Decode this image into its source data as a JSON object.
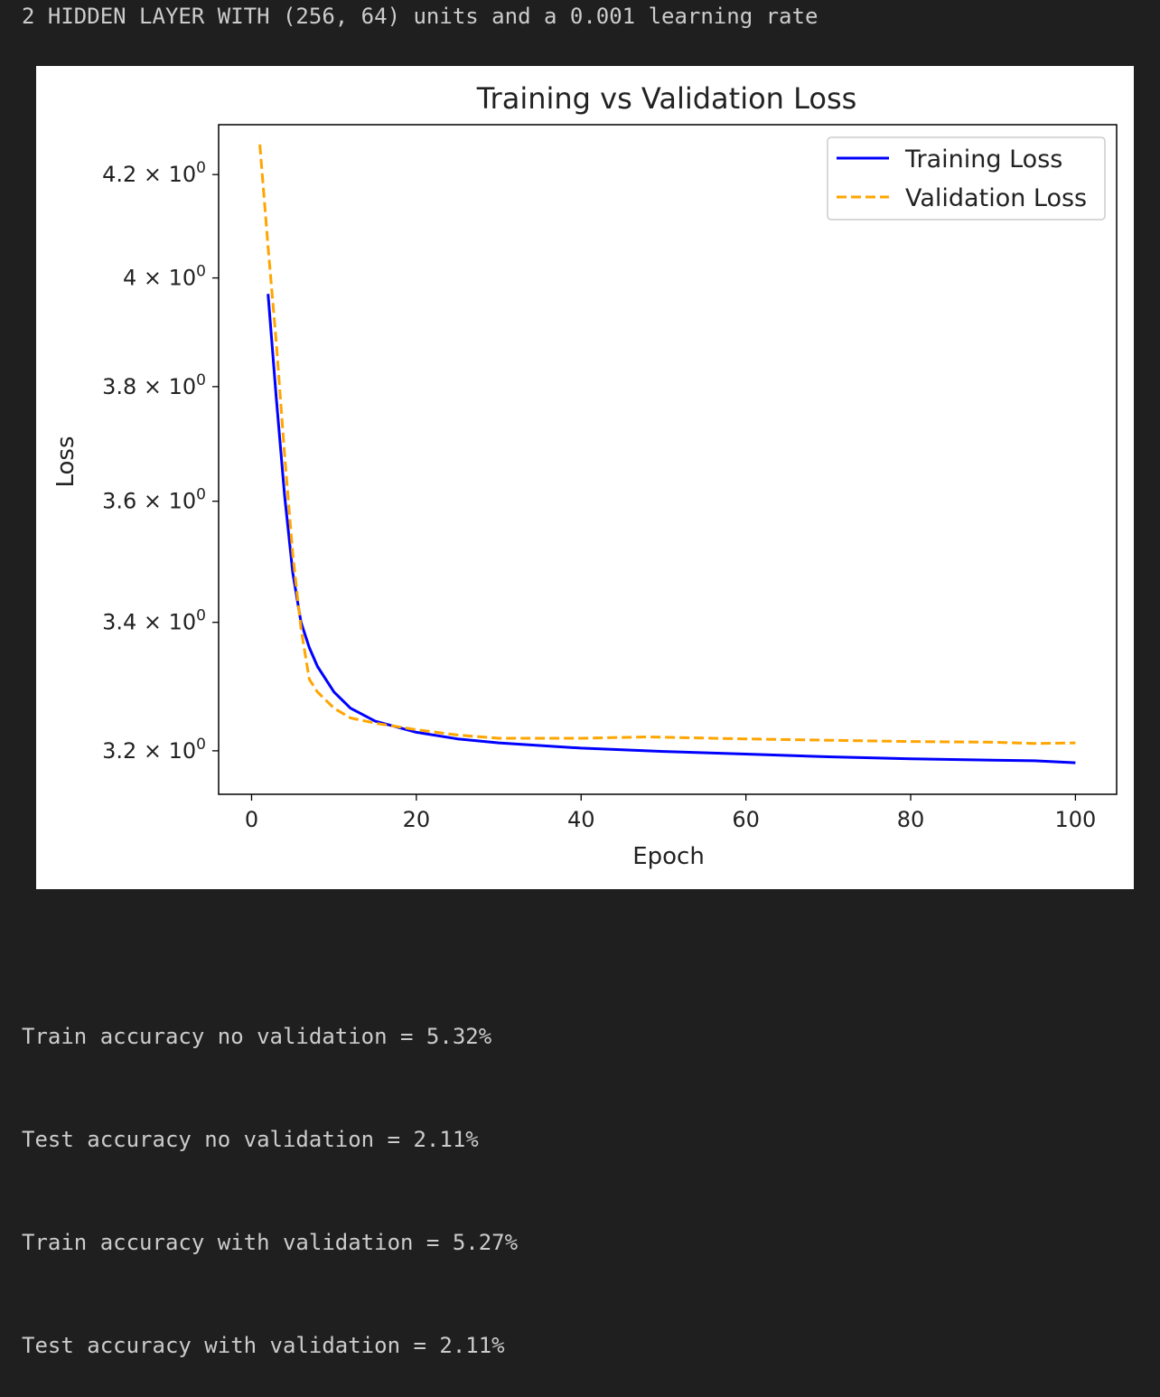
{
  "output": {
    "header": "2 HIDDEN LAYER WITH (256, 64) units and a 0.001 learning rate",
    "results": [
      "Train accuracy no validation = 5.32%",
      "Test accuracy no validation = 2.11%",
      "Train accuracy with validation = 5.27%",
      "Test accuracy with validation = 2.11%"
    ]
  },
  "chart_data": {
    "type": "line",
    "title": "Training vs Validation Loss",
    "xlabel": "Epoch",
    "ylabel": "Loss",
    "yscale": "log",
    "xlim": [
      -4,
      105
    ],
    "ylim": [
      3.135,
      4.3
    ],
    "xticks": [
      0,
      20,
      40,
      60,
      80,
      100
    ],
    "xtick_labels": [
      "0",
      "20",
      "40",
      "60",
      "80",
      "100"
    ],
    "yticks": [
      {
        "value": 3.2,
        "mantissa": "3.2",
        "base": "× 10",
        "exp": "0"
      },
      {
        "value": 3.4,
        "mantissa": "3.4",
        "base": "× 10",
        "exp": "0"
      },
      {
        "value": 3.6,
        "mantissa": "3.6",
        "base": "× 10",
        "exp": "0"
      },
      {
        "value": 3.8,
        "mantissa": "3.8",
        "base": "× 10",
        "exp": "0"
      },
      {
        "value": 4.0,
        "mantissa": "4",
        "base": "× 10",
        "exp": "0"
      },
      {
        "value": 4.2,
        "mantissa": "4.2",
        "base": "× 10",
        "exp": "0"
      }
    ],
    "legend": {
      "position": "upper right"
    },
    "grid": false,
    "series": [
      {
        "name": "Training Loss",
        "color": "#0000ff",
        "style": "solid",
        "x": [
          2,
          3,
          4,
          5,
          6,
          7,
          8,
          10,
          12,
          15,
          20,
          25,
          30,
          40,
          50,
          60,
          70,
          80,
          90,
          95,
          100
        ],
        "y": [
          3.97,
          3.78,
          3.61,
          3.48,
          3.4,
          3.36,
          3.33,
          3.29,
          3.265,
          3.245,
          3.228,
          3.218,
          3.212,
          3.204,
          3.199,
          3.195,
          3.191,
          3.188,
          3.186,
          3.185,
          3.182
        ]
      },
      {
        "name": "Validation Loss",
        "color": "#ffa500",
        "style": "dashed",
        "x": [
          1,
          2,
          3,
          4,
          5,
          6,
          7,
          8,
          10,
          12,
          15,
          20,
          25,
          30,
          40,
          48,
          60,
          70,
          80,
          90,
          95,
          100
        ],
        "y": [
          4.26,
          4.06,
          3.88,
          3.68,
          3.51,
          3.39,
          3.31,
          3.29,
          3.265,
          3.25,
          3.242,
          3.232,
          3.224,
          3.219,
          3.219,
          3.221,
          3.218,
          3.216,
          3.214,
          3.213,
          3.211,
          3.212
        ]
      }
    ]
  }
}
